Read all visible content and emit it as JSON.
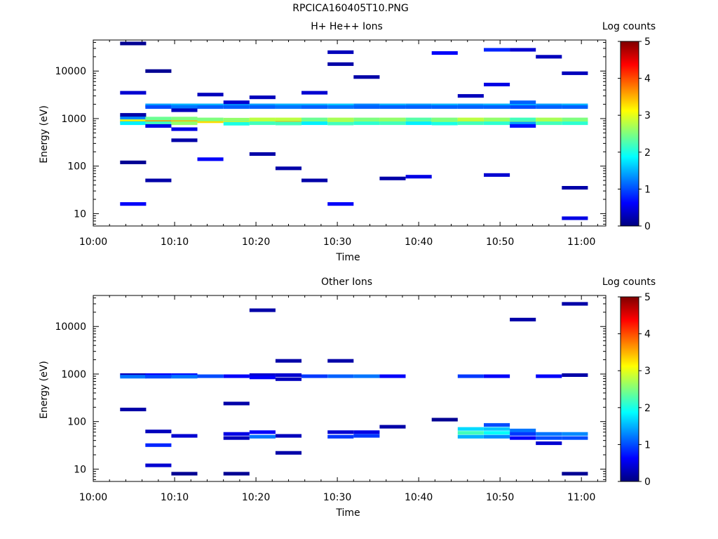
{
  "figure_title": "RPCICA160405T10.PNG",
  "colors": {
    "colormap": [
      "#00007f",
      "#0000ff",
      "#007fff",
      "#00ffff",
      "#7fff7f",
      "#ffff00",
      "#ff7f00",
      "#ff0000",
      "#7f0000"
    ]
  },
  "chart_data": [
    {
      "type": "heatmap",
      "title": "H+ He++ Ions",
      "xlabel": "Time",
      "ylabel": "Energy (eV)",
      "x_ticks": [
        "10:00",
        "10:10",
        "10:20",
        "10:30",
        "10:40",
        "10:50",
        "11:00"
      ],
      "y_ticks": [
        "10",
        "100",
        "1000",
        "10000"
      ],
      "y_scale": "log",
      "ylim": [
        5.5,
        45000
      ],
      "xlim_minutes": [
        0,
        63
      ],
      "colorbar": {
        "label": "Log counts",
        "ticks": [
          "0",
          "1",
          "2",
          "3",
          "4",
          "5"
        ],
        "range": [
          0,
          5
        ]
      },
      "time_bins_minutes": [
        3.3,
        6.4,
        9.6,
        12.8,
        16.0,
        19.2,
        22.4,
        25.6,
        28.8,
        32.0,
        35.2,
        38.4,
        41.6,
        44.8,
        48.0,
        51.2,
        54.4,
        57.6,
        60.8
      ],
      "cells": [
        [
          3.3,
          870,
          4.0
        ],
        [
          3.3,
          960,
          3.0
        ],
        [
          3.3,
          800,
          1.8
        ],
        [
          3.3,
          1050,
          1.3
        ],
        [
          3.3,
          16,
          0.6
        ],
        [
          3.3,
          3500,
          0.4
        ],
        [
          3.3,
          38000,
          0.1
        ],
        [
          3.3,
          120,
          0.1
        ],
        [
          3.3,
          1200,
          0.2
        ],
        [
          6.4,
          900,
          3.7
        ],
        [
          6.4,
          800,
          2.2
        ],
        [
          6.4,
          1000,
          2.4
        ],
        [
          6.4,
          1900,
          1.4
        ],
        [
          6.4,
          1750,
          1.0
        ],
        [
          6.4,
          700,
          0.5
        ],
        [
          6.4,
          50,
          0.2
        ],
        [
          6.4,
          10000,
          0.1
        ],
        [
          9.6,
          900,
          3.5
        ],
        [
          9.6,
          800,
          2.6
        ],
        [
          9.6,
          1000,
          2.5
        ],
        [
          9.6,
          1900,
          1.5
        ],
        [
          9.6,
          1750,
          1.2
        ],
        [
          9.6,
          600,
          0.5
        ],
        [
          9.6,
          350,
          0.2
        ],
        [
          9.6,
          1500,
          0.3
        ],
        [
          12.8,
          880,
          3.3
        ],
        [
          12.8,
          960,
          2.5
        ],
        [
          12.8,
          1900,
          1.5
        ],
        [
          12.8,
          1750,
          1.1
        ],
        [
          12.8,
          140,
          0.6
        ],
        [
          12.8,
          3200,
          0.3
        ],
        [
          16.0,
          870,
          3.2
        ],
        [
          16.0,
          950,
          2.6
        ],
        [
          16.0,
          780,
          2.0
        ],
        [
          16.0,
          1900,
          1.4
        ],
        [
          16.0,
          1750,
          1.1
        ],
        [
          16.0,
          2200,
          0.4
        ],
        [
          19.2,
          880,
          3.1
        ],
        [
          19.2,
          960,
          2.8
        ],
        [
          19.2,
          800,
          2.2
        ],
        [
          19.2,
          1900,
          1.4
        ],
        [
          19.2,
          1750,
          1.1
        ],
        [
          19.2,
          180,
          0.2
        ],
        [
          19.2,
          2800,
          0.3
        ],
        [
          22.4,
          870,
          3.6
        ],
        [
          22.4,
          960,
          2.8
        ],
        [
          22.4,
          790,
          2.2
        ],
        [
          22.4,
          1900,
          1.5
        ],
        [
          22.4,
          1750,
          1.2
        ],
        [
          22.4,
          90,
          0.2
        ],
        [
          25.6,
          880,
          3.0
        ],
        [
          25.6,
          960,
          2.4
        ],
        [
          25.6,
          800,
          1.8
        ],
        [
          25.6,
          1900,
          1.5
        ],
        [
          25.6,
          1750,
          1.1
        ],
        [
          25.6,
          3500,
          0.4
        ],
        [
          25.6,
          50,
          0.2
        ],
        [
          28.8,
          870,
          3.1
        ],
        [
          28.8,
          960,
          2.7
        ],
        [
          28.8,
          790,
          2.2
        ],
        [
          28.8,
          1900,
          1.6
        ],
        [
          28.8,
          1750,
          1.2
        ],
        [
          28.8,
          16,
          0.6
        ],
        [
          28.8,
          25000,
          0.3
        ],
        [
          28.8,
          14000,
          0.2
        ],
        [
          32.0,
          880,
          3.0
        ],
        [
          32.0,
          960,
          2.5
        ],
        [
          32.0,
          800,
          2.1
        ],
        [
          32.0,
          1900,
          1.3
        ],
        [
          32.0,
          1750,
          1.1
        ],
        [
          32.0,
          7500,
          0.2
        ],
        [
          35.2,
          870,
          2.9
        ],
        [
          35.2,
          960,
          2.6
        ],
        [
          35.2,
          800,
          2.2
        ],
        [
          35.2,
          1900,
          1.5
        ],
        [
          35.2,
          1750,
          1.1
        ],
        [
          35.2,
          55,
          0.2
        ],
        [
          38.4,
          880,
          3.0
        ],
        [
          38.4,
          960,
          2.3
        ],
        [
          38.4,
          800,
          1.8
        ],
        [
          38.4,
          1900,
          1.4
        ],
        [
          38.4,
          1750,
          1.1
        ],
        [
          38.4,
          60,
          0.5
        ],
        [
          41.6,
          880,
          2.9
        ],
        [
          41.6,
          960,
          2.5
        ],
        [
          41.6,
          790,
          2.0
        ],
        [
          41.6,
          1900,
          1.5
        ],
        [
          41.6,
          1750,
          1.1
        ],
        [
          41.6,
          24000,
          0.6
        ],
        [
          44.8,
          880,
          3.3
        ],
        [
          44.8,
          960,
          2.8
        ],
        [
          44.8,
          800,
          2.2
        ],
        [
          44.8,
          1900,
          1.4
        ],
        [
          44.8,
          1750,
          1.1
        ],
        [
          44.8,
          3000,
          0.3
        ],
        [
          48.0,
          870,
          3.1
        ],
        [
          48.0,
          960,
          2.6
        ],
        [
          48.0,
          800,
          2.1
        ],
        [
          48.0,
          1900,
          1.5
        ],
        [
          48.0,
          1750,
          1.1
        ],
        [
          48.0,
          65,
          0.4
        ],
        [
          48.0,
          28000,
          0.8
        ],
        [
          48.0,
          5200,
          0.5
        ],
        [
          51.2,
          880,
          2.7
        ],
        [
          51.2,
          960,
          2.2
        ],
        [
          51.2,
          790,
          1.4
        ],
        [
          51.2,
          1900,
          1.5
        ],
        [
          51.2,
          2200,
          1.1
        ],
        [
          51.2,
          1750,
          1.0
        ],
        [
          51.2,
          700,
          0.7
        ],
        [
          51.2,
          28000,
          0.4
        ],
        [
          54.4,
          880,
          3.1
        ],
        [
          54.4,
          960,
          2.7
        ],
        [
          54.4,
          800,
          2.2
        ],
        [
          54.4,
          1900,
          1.4
        ],
        [
          54.4,
          1750,
          1.1
        ],
        [
          54.4,
          20000,
          0.3
        ],
        [
          57.6,
          880,
          2.9
        ],
        [
          57.6,
          960,
          2.5
        ],
        [
          57.6,
          800,
          2.1
        ],
        [
          57.6,
          1900,
          1.5
        ],
        [
          57.6,
          1750,
          1.1
        ],
        [
          57.6,
          8,
          0.5
        ],
        [
          57.6,
          35,
          0.2
        ],
        [
          57.6,
          9000,
          0.3
        ]
      ]
    },
    {
      "type": "heatmap",
      "title": "Other Ions",
      "xlabel": "Time",
      "ylabel": "Energy (eV)",
      "x_ticks": [
        "10:00",
        "10:10",
        "10:20",
        "10:30",
        "10:40",
        "10:50",
        "11:00"
      ],
      "y_ticks": [
        "10",
        "100",
        "1000",
        "10000"
      ],
      "y_scale": "log",
      "ylim": [
        5.5,
        45000
      ],
      "xlim_minutes": [
        0,
        63
      ],
      "colorbar": {
        "label": "Log counts",
        "ticks": [
          "0",
          "1",
          "2",
          "3",
          "4",
          "5"
        ],
        "range": [
          0,
          5
        ]
      },
      "time_bins_minutes": [
        3.3,
        6.4,
        9.6,
        12.8,
        16.0,
        19.2,
        22.4,
        25.6,
        28.8,
        32.0,
        35.2,
        38.4,
        41.6,
        44.8,
        48.0,
        51.2,
        54.4,
        57.6,
        60.8
      ],
      "cells": [
        [
          3.3,
          950,
          0.3
        ],
        [
          3.3,
          880,
          1.2
        ],
        [
          3.3,
          180,
          0.2
        ],
        [
          6.4,
          950,
          0.6
        ],
        [
          6.4,
          880,
          1.0
        ],
        [
          6.4,
          62,
          0.3
        ],
        [
          6.4,
          32,
          0.8
        ],
        [
          6.4,
          12,
          0.4
        ],
        [
          9.6,
          950,
          0.7
        ],
        [
          9.6,
          880,
          1.2
        ],
        [
          9.6,
          50,
          0.4
        ],
        [
          9.6,
          8,
          0.1
        ],
        [
          12.8,
          900,
          1.0
        ],
        [
          16.0,
          900,
          0.6
        ],
        [
          16.0,
          240,
          0.2
        ],
        [
          16.0,
          55,
          0.5
        ],
        [
          16.0,
          45,
          0.3
        ],
        [
          16.0,
          8,
          0.1
        ],
        [
          19.2,
          950,
          0.4
        ],
        [
          19.2,
          850,
          0.6
        ],
        [
          19.2,
          60,
          0.6
        ],
        [
          19.2,
          48,
          1.2
        ],
        [
          19.2,
          22000,
          0.2
        ],
        [
          22.4,
          950,
          0.4
        ],
        [
          22.4,
          780,
          0.3
        ],
        [
          22.4,
          50,
          0.3
        ],
        [
          22.4,
          22,
          0.2
        ],
        [
          22.4,
          1900,
          0.2
        ],
        [
          25.6,
          900,
          0.9
        ],
        [
          28.8,
          900,
          1.1
        ],
        [
          28.8,
          60,
          0.4
        ],
        [
          28.8,
          48,
          0.9
        ],
        [
          28.8,
          1900,
          0.2
        ],
        [
          32.0,
          900,
          1.2
        ],
        [
          32.0,
          60,
          0.5
        ],
        [
          32.0,
          50,
          0.9
        ],
        [
          35.2,
          900,
          0.6
        ],
        [
          35.2,
          78,
          0.2
        ],
        [
          41.6,
          110,
          0.1
        ],
        [
          44.8,
          900,
          0.9
        ],
        [
          44.8,
          70,
          1.7
        ],
        [
          44.8,
          58,
          2.2
        ],
        [
          44.8,
          48,
          1.5
        ],
        [
          48.0,
          900,
          0.6
        ],
        [
          48.0,
          85,
          1.0
        ],
        [
          48.0,
          70,
          1.6
        ],
        [
          48.0,
          58,
          1.9
        ],
        [
          48.0,
          48,
          1.3
        ],
        [
          51.2,
          14000,
          0.2
        ],
        [
          51.2,
          65,
          1.2
        ],
        [
          51.2,
          55,
          0.9
        ],
        [
          51.2,
          45,
          0.6
        ],
        [
          54.4,
          900,
          0.6
        ],
        [
          54.4,
          55,
          1.2
        ],
        [
          54.4,
          45,
          1.0
        ],
        [
          54.4,
          35,
          0.4
        ],
        [
          57.6,
          950,
          0.2
        ],
        [
          57.6,
          55,
          1.3
        ],
        [
          57.6,
          45,
          1.0
        ],
        [
          57.6,
          30000,
          0.2
        ],
        [
          57.6,
          8,
          0.1
        ]
      ]
    }
  ]
}
